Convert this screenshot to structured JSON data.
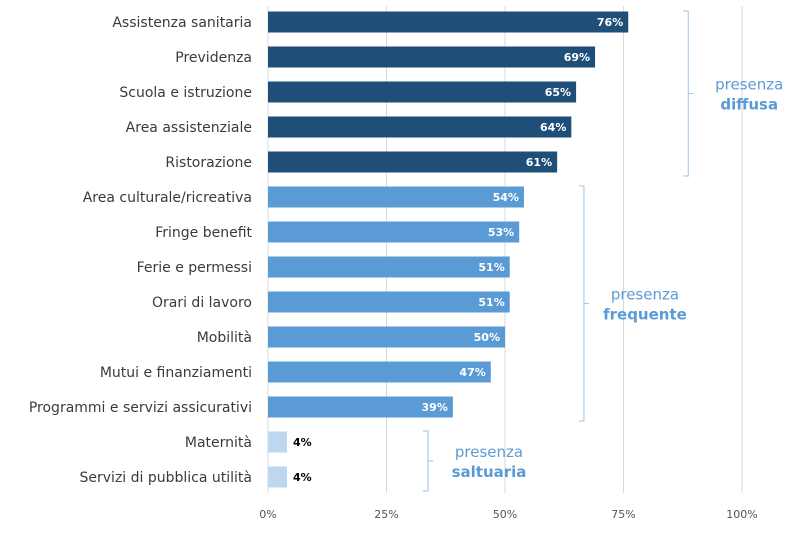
{
  "chart_data": {
    "type": "bar",
    "orientation": "horizontal",
    "categories": [
      "Assistenza sanitaria",
      "Previdenza",
      "Scuola e istruzione",
      "Area assistenziale",
      "Ristorazione",
      "Area culturale/ricreativa",
      "Fringe benefit",
      "Ferie e permessi",
      "Orari di lavoro",
      "Mobilità",
      "Mutui e finanziamenti",
      "Programmi e servizi assicurativi",
      "Maternità",
      "Servizi di pubblica utilità"
    ],
    "values": [
      76,
      69,
      65,
      64,
      61,
      54,
      53,
      51,
      51,
      50,
      47,
      39,
      4,
      4
    ],
    "value_labels": [
      "76%",
      "69%",
      "65%",
      "64%",
      "61%",
      "54%",
      "53%",
      "51%",
      "51%",
      "50%",
      "47%",
      "39%",
      "4%",
      "4%"
    ],
    "xlim": [
      0,
      100
    ],
    "x_ticks": [
      0,
      25,
      50,
      75,
      100
    ],
    "x_tick_labels": [
      "0%",
      "25%",
      "50%",
      "75%",
      "100%"
    ],
    "grid": "vertical",
    "groups": [
      {
        "line1": "presenza",
        "line2": "diffusa",
        "start": 0,
        "end": 4,
        "color": "#1f4e79"
      },
      {
        "line1": "presenza",
        "line2": "frequente",
        "start": 5,
        "end": 11,
        "color": "#5b9bd5"
      },
      {
        "line1": "presenza",
        "line2": "saltuaria",
        "start": 12,
        "end": 13,
        "color": "#bdd7ee"
      }
    ],
    "text_color_dark": "#000000",
    "text_color_light": "#ffffff",
    "group_text_color": "#5b9bd5",
    "grid_color": "#d9d9d9",
    "bracket_color": "#9dc3e6"
  }
}
